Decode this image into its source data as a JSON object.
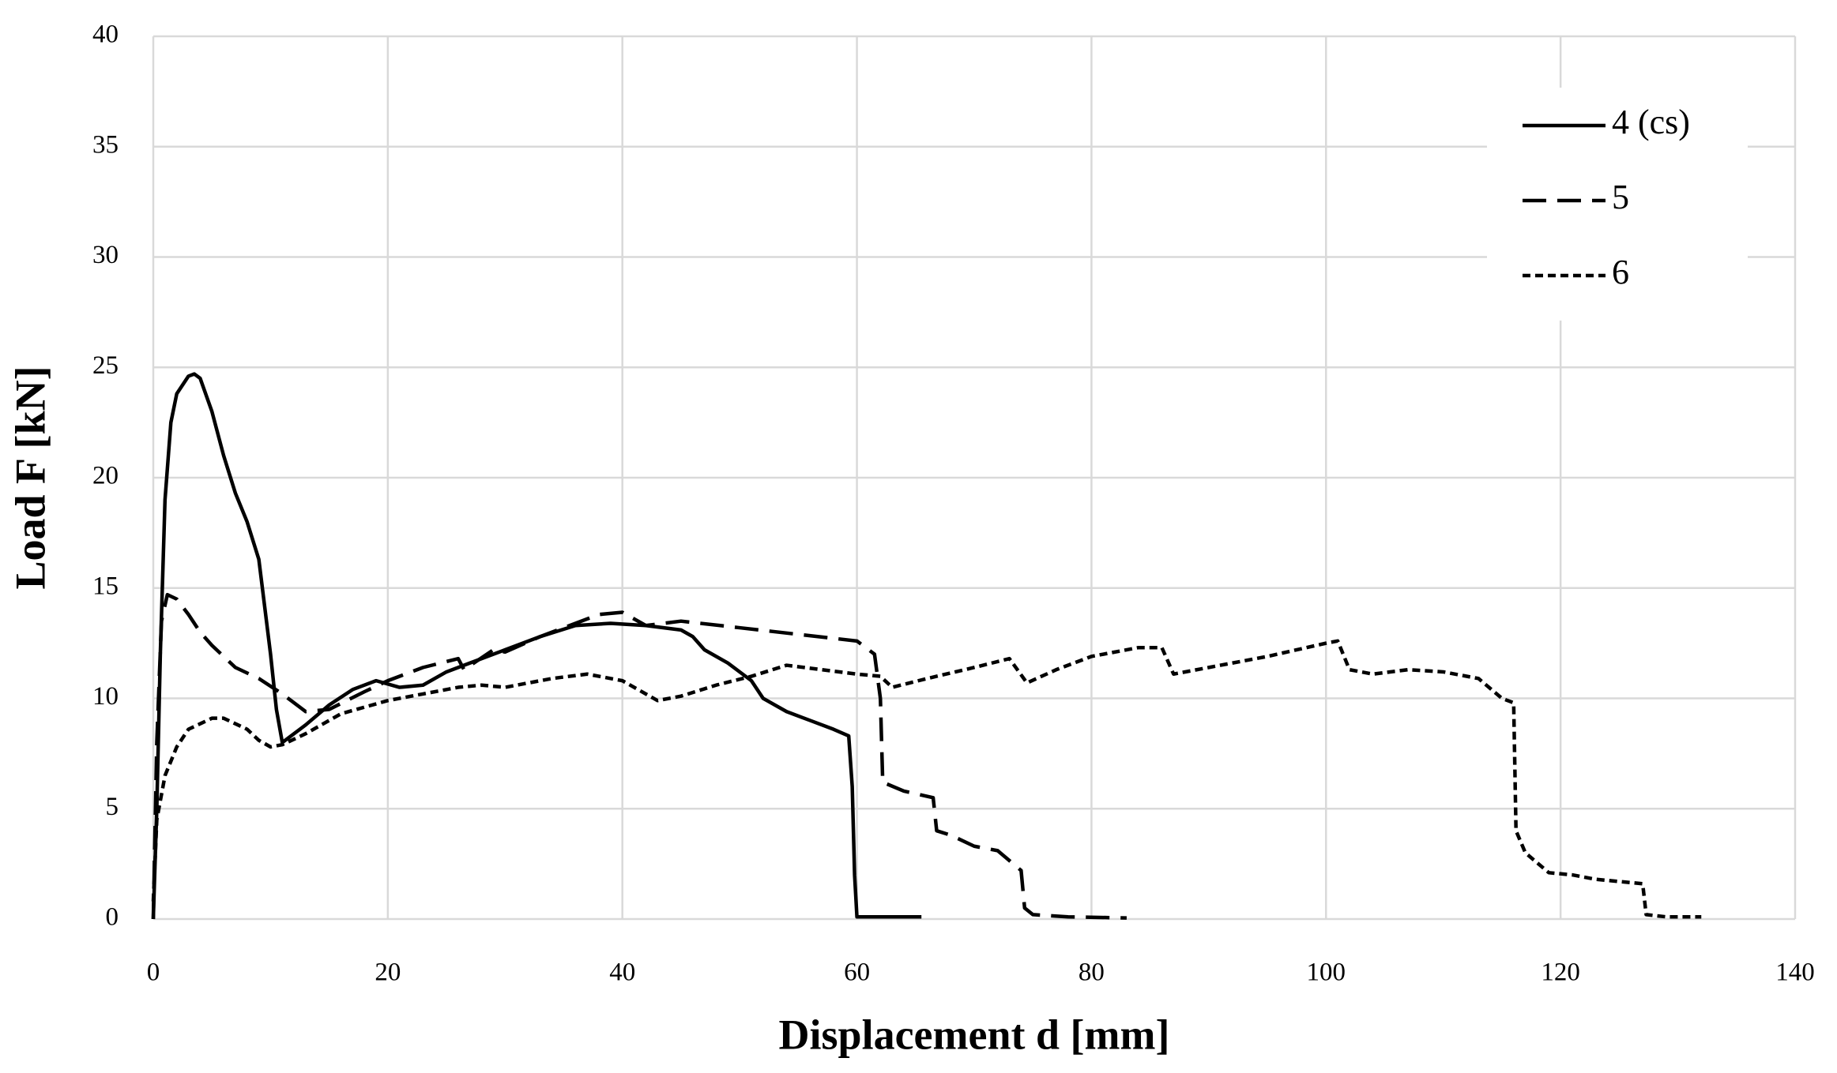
{
  "chart_data": {
    "type": "line",
    "x_label": "Displacement d [mm]",
    "y_label": "Load F [kN]",
    "xlim": [
      0,
      140
    ],
    "xticks": [
      0,
      20,
      40,
      60,
      80,
      100,
      120,
      140
    ],
    "ylim": [
      0,
      40
    ],
    "yticks": [
      0,
      5,
      10,
      15,
      20,
      25,
      30,
      35,
      40
    ],
    "grid": true,
    "legend": "top-right",
    "series": [
      {
        "name": "4 (cs)",
        "color": "#000000",
        "dash": "solid",
        "x": [
          0,
          0.3,
          0.6,
          1,
          1.5,
          2,
          3,
          3.5,
          4,
          5,
          6,
          7,
          8,
          9,
          10,
          10.5,
          11,
          13,
          15,
          17,
          19,
          21,
          23,
          25,
          27,
          30,
          33,
          36,
          39,
          42,
          45,
          46,
          47,
          49,
          51,
          52,
          54,
          56,
          58,
          59.3,
          59.6,
          59.8,
          60,
          62,
          65.5
        ],
        "values": [
          0,
          5,
          12,
          19,
          22.5,
          23.8,
          24.6,
          24.7,
          24.5,
          23,
          21,
          19.3,
          18,
          16.3,
          12,
          9.5,
          8,
          8.8,
          9.7,
          10.4,
          10.8,
          10.5,
          10.6,
          11.2,
          11.6,
          12.2,
          12.8,
          13.3,
          13.4,
          13.3,
          13.1,
          12.8,
          12.2,
          11.6,
          10.8,
          10,
          9.4,
          9,
          8.6,
          8.3,
          6,
          2,
          0.1,
          0.1,
          0.1
        ]
      },
      {
        "name": "5",
        "color": "#000000",
        "dash": "dashed",
        "x": [
          0,
          0.3,
          0.7,
          1.2,
          2,
          3,
          4,
          5,
          7,
          9,
          11,
          13,
          15,
          18,
          20,
          23,
          26,
          26.5,
          29,
          30,
          33,
          36,
          38,
          40,
          42,
          45,
          50,
          55,
          60,
          61.5,
          62,
          62.2,
          64,
          66.5,
          66.8,
          68,
          70,
          72,
          74,
          74.3,
          75,
          78,
          83
        ],
        "values": [
          0,
          8,
          13.5,
          14.7,
          14.5,
          13.8,
          13,
          12.4,
          11.4,
          10.9,
          10.2,
          9.4,
          9.5,
          10.3,
          10.8,
          11.4,
          11.8,
          11.3,
          12.2,
          12.1,
          12.8,
          13.4,
          13.8,
          13.9,
          13.3,
          13.5,
          13.2,
          12.9,
          12.6,
          12,
          10,
          6.2,
          5.8,
          5.5,
          4,
          3.8,
          3.3,
          3.1,
          2.2,
          0.5,
          0.2,
          0.1,
          0.05
        ]
      },
      {
        "name": "6",
        "color": "#000000",
        "dash": "dotted",
        "x": [
          0,
          0.3,
          1,
          2,
          3,
          5,
          6,
          8,
          9,
          10,
          11,
          13,
          16,
          20,
          23,
          26,
          28,
          30,
          34,
          37,
          40,
          43,
          45,
          48,
          51,
          54,
          57,
          60,
          62,
          63,
          66,
          70,
          73,
          74.5,
          77,
          80,
          84,
          86,
          87,
          90,
          95,
          100,
          101,
          102,
          104,
          107,
          110,
          113,
          115,
          116,
          116.2,
          117,
          119,
          121,
          123,
          125,
          127,
          127.3,
          129,
          132
        ],
        "values": [
          0.8,
          4.5,
          6.5,
          7.8,
          8.6,
          9.1,
          9.1,
          8.6,
          8.1,
          7.8,
          7.9,
          8.4,
          9.3,
          9.9,
          10.2,
          10.5,
          10.6,
          10.5,
          10.9,
          11.1,
          10.8,
          9.9,
          10.1,
          10.6,
          11,
          11.5,
          11.3,
          11.1,
          11,
          10.5,
          10.9,
          11.4,
          11.8,
          10.7,
          11.3,
          11.9,
          12.3,
          12.3,
          11.1,
          11.4,
          11.9,
          12.5,
          12.6,
          11.3,
          11.1,
          11.3,
          11.2,
          10.9,
          10,
          9.8,
          4,
          3,
          2.1,
          2,
          1.8,
          1.7,
          1.6,
          0.2,
          0.1,
          0.1
        ]
      }
    ]
  }
}
